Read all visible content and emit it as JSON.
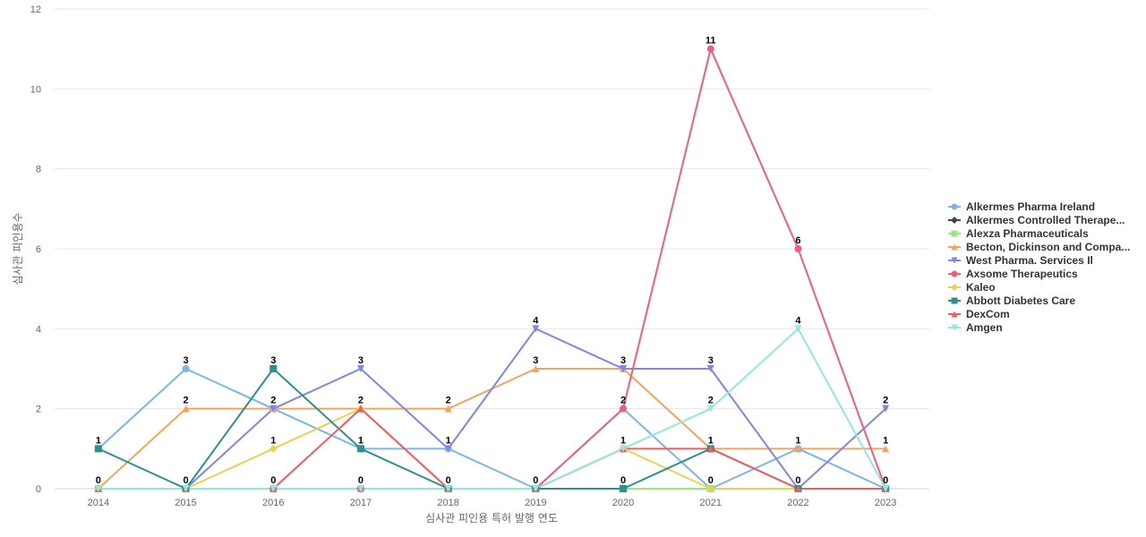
{
  "chart_data": {
    "type": "line",
    "title": "",
    "xlabel": "심사관 피인용 특허 발행 연도",
    "ylabel": "심사관 피인용수",
    "x": [
      "2014",
      "2015",
      "2016",
      "2017",
      "2018",
      "2019",
      "2020",
      "2021",
      "2022",
      "2023"
    ],
    "ylim": [
      0,
      12
    ],
    "yticks": [
      0,
      2,
      4,
      6,
      8,
      10,
      12
    ],
    "grid": true,
    "legend_position": "right",
    "series": [
      {
        "name": "Alkermes Pharma Ireland",
        "color": "#7cb5ec",
        "marker": "circle",
        "values": [
          1,
          3,
          2,
          1,
          1,
          0,
          2,
          0,
          1,
          0
        ]
      },
      {
        "name": "Alkermes Controlled Therape...",
        "color": "#434348",
        "marker": "diamond",
        "values": [
          0,
          0,
          0,
          0,
          0,
          0,
          0,
          0,
          0,
          0
        ]
      },
      {
        "name": "Alexza Pharmaceuticals",
        "color": "#90ed7d",
        "marker": "square",
        "values": [
          0,
          0,
          0,
          0,
          0,
          0,
          0,
          0,
          0,
          0
        ]
      },
      {
        "name": "Becton, Dickinson and Compa...",
        "color": "#f7a35c",
        "marker": "triangle",
        "values": [
          0,
          2,
          2,
          2,
          2,
          3,
          3,
          1,
          1,
          1
        ]
      },
      {
        "name": "West Pharma. Services Il",
        "color": "#8085e9",
        "marker": "triangle-down",
        "values": [
          0,
          0,
          2,
          3,
          1,
          4,
          3,
          3,
          0,
          2
        ]
      },
      {
        "name": "Axsome Therapeutics",
        "color": "#f15c80",
        "marker": "circle",
        "values": [
          0,
          0,
          0,
          0,
          0,
          0,
          2,
          11,
          6,
          0
        ]
      },
      {
        "name": "Kaleo",
        "color": "#e4d354",
        "marker": "diamond",
        "values": [
          0,
          0,
          1,
          2,
          0,
          0,
          1,
          0,
          0,
          0
        ]
      },
      {
        "name": "Abbott Diabetes Care",
        "color": "#2b908f",
        "marker": "square",
        "values": [
          1,
          0,
          3,
          1,
          0,
          0,
          0,
          1,
          0,
          0
        ]
      },
      {
        "name": "DexCom",
        "color": "#f45b5b",
        "marker": "triangle",
        "values": [
          0,
          0,
          0,
          2,
          0,
          0,
          1,
          1,
          0,
          0
        ]
      },
      {
        "name": "Amgen",
        "color": "#91e8e1",
        "marker": "triangle-down",
        "values": [
          0,
          0,
          0,
          0,
          0,
          0,
          1,
          2,
          4,
          0
        ]
      }
    ],
    "data_labels": [
      {
        "x": "2014",
        "text": "1",
        "y": 1
      },
      {
        "x": "2014",
        "text": "0",
        "y": 0
      },
      {
        "x": "2015",
        "text": "3",
        "y": 3
      },
      {
        "x": "2015",
        "text": "2",
        "y": 2
      },
      {
        "x": "2015",
        "text": "0",
        "y": 0
      },
      {
        "x": "2016",
        "text": "3",
        "y": 3
      },
      {
        "x": "2016",
        "text": "2",
        "y": 2
      },
      {
        "x": "2016",
        "text": "1",
        "y": 1
      },
      {
        "x": "2016",
        "text": "0",
        "y": 0
      },
      {
        "x": "2017",
        "text": "3",
        "y": 3
      },
      {
        "x": "2017",
        "text": "2",
        "y": 2
      },
      {
        "x": "2017",
        "text": "1",
        "y": 1
      },
      {
        "x": "2017",
        "text": "0",
        "y": 0
      },
      {
        "x": "2018",
        "text": "2",
        "y": 2
      },
      {
        "x": "2018",
        "text": "1",
        "y": 1
      },
      {
        "x": "2018",
        "text": "0",
        "y": 0
      },
      {
        "x": "2019",
        "text": "4",
        "y": 4
      },
      {
        "x": "2019",
        "text": "3",
        "y": 3
      },
      {
        "x": "2019",
        "text": "0",
        "y": 0
      },
      {
        "x": "2020",
        "text": "3",
        "y": 3
      },
      {
        "x": "2020",
        "text": "2",
        "y": 2
      },
      {
        "x": "2020",
        "text": "1",
        "y": 1
      },
      {
        "x": "2020",
        "text": "0",
        "y": 0
      },
      {
        "x": "2021",
        "text": "11",
        "y": 11
      },
      {
        "x": "2021",
        "text": "3",
        "y": 3
      },
      {
        "x": "2021",
        "text": "2",
        "y": 2
      },
      {
        "x": "2021",
        "text": "1",
        "y": 1
      },
      {
        "x": "2021",
        "text": "0",
        "y": 0
      },
      {
        "x": "2022",
        "text": "6",
        "y": 6
      },
      {
        "x": "2022",
        "text": "4",
        "y": 4
      },
      {
        "x": "2022",
        "text": "1",
        "y": 1
      },
      {
        "x": "2022",
        "text": "0",
        "y": 0
      },
      {
        "x": "2023",
        "text": "2",
        "y": 2
      },
      {
        "x": "2023",
        "text": "1",
        "y": 1
      },
      {
        "x": "2023",
        "text": "0",
        "y": 0
      }
    ]
  }
}
